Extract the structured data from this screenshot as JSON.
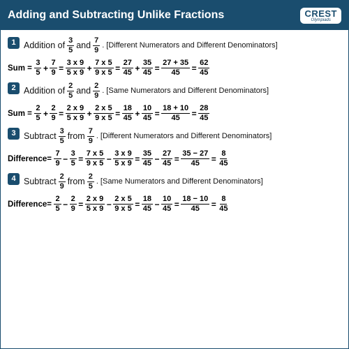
{
  "colors": {
    "brand": "#1a4d6e",
    "text": "#111111",
    "bg": "#ffffff"
  },
  "header": {
    "title": "Adding and Subtracting Unlike Fractions",
    "logo_main": "CREST",
    "logo_sub": "Olympiads"
  },
  "problems": [
    {
      "num": "1",
      "lead": "Addition of",
      "f1": {
        "n": "3",
        "d": "5"
      },
      "mid": "and",
      "f2": {
        "n": "7",
        "d": "9"
      },
      "tail": ". [Different Numerators and Different Denominators]",
      "label": "Sum =",
      "steps": [
        {
          "n": "3",
          "d": "5"
        },
        "+",
        {
          "n": "7",
          "d": "9"
        },
        "=",
        {
          "n": "3 x 9",
          "d": "5 x 9"
        },
        "+",
        {
          "n": "7 x 5",
          "d": "9 x 5"
        },
        "=",
        {
          "n": "27",
          "d": "45"
        },
        "+",
        {
          "n": "35",
          "d": "45"
        },
        "=",
        {
          "n": "27 + 35",
          "d": "45"
        },
        "=",
        {
          "n": "62",
          "d": "45"
        }
      ]
    },
    {
      "num": "2",
      "lead": "Addition of",
      "f1": {
        "n": "2",
        "d": "5"
      },
      "mid": "and",
      "f2": {
        "n": "2",
        "d": "9"
      },
      "tail": ". [Same Numerators and Different Denominators]",
      "label": "Sum =",
      "steps": [
        {
          "n": "2",
          "d": "5"
        },
        "+",
        {
          "n": "2",
          "d": "9"
        },
        "=",
        {
          "n": "2 x 9",
          "d": "5 x 9"
        },
        "+",
        {
          "n": "2 x 5",
          "d": "9 x 5"
        },
        "=",
        {
          "n": "18",
          "d": "45"
        },
        "+",
        {
          "n": "10",
          "d": "45"
        },
        "=",
        {
          "n": "18 + 10",
          "d": "45"
        },
        "=",
        {
          "n": "28",
          "d": "45"
        }
      ]
    },
    {
      "num": "3",
      "lead": "Subtract",
      "f1": {
        "n": "3",
        "d": "5"
      },
      "mid": "from",
      "f2": {
        "n": "7",
        "d": "9"
      },
      "tail": ". [Different Numerators and Different Denominators]",
      "label": "Difference=",
      "steps": [
        {
          "n": "7",
          "d": "9"
        },
        "−",
        {
          "n": "3",
          "d": "5"
        },
        "=",
        {
          "n": "7 x 5",
          "d": "9 x 5"
        },
        "−",
        {
          "n": "3 x 9",
          "d": "5 x 9"
        },
        "=",
        {
          "n": "35",
          "d": "45"
        },
        "−",
        {
          "n": "27",
          "d": "45"
        },
        "=",
        {
          "n": "35 − 27",
          "d": "45"
        },
        "=",
        {
          "n": "8",
          "d": "45"
        }
      ]
    },
    {
      "num": "4",
      "lead": "Subtract",
      "f1": {
        "n": "2",
        "d": "9"
      },
      "mid": "from",
      "f2": {
        "n": "2",
        "d": "5"
      },
      "tail": ". [Same Numerators and Different Denominators]",
      "label": "Difference=",
      "steps": [
        {
          "n": "2",
          "d": "5"
        },
        "−",
        {
          "n": "2",
          "d": "9"
        },
        "=",
        {
          "n": "2 x 9",
          "d": "5 x 9"
        },
        "−",
        {
          "n": "2 x 5",
          "d": "9 x 5"
        },
        "=",
        {
          "n": "18",
          "d": "45"
        },
        "−",
        {
          "n": "10",
          "d": "45"
        },
        "=",
        {
          "n": "18 − 10",
          "d": "45"
        },
        "=",
        {
          "n": "8",
          "d": "45"
        }
      ]
    }
  ]
}
